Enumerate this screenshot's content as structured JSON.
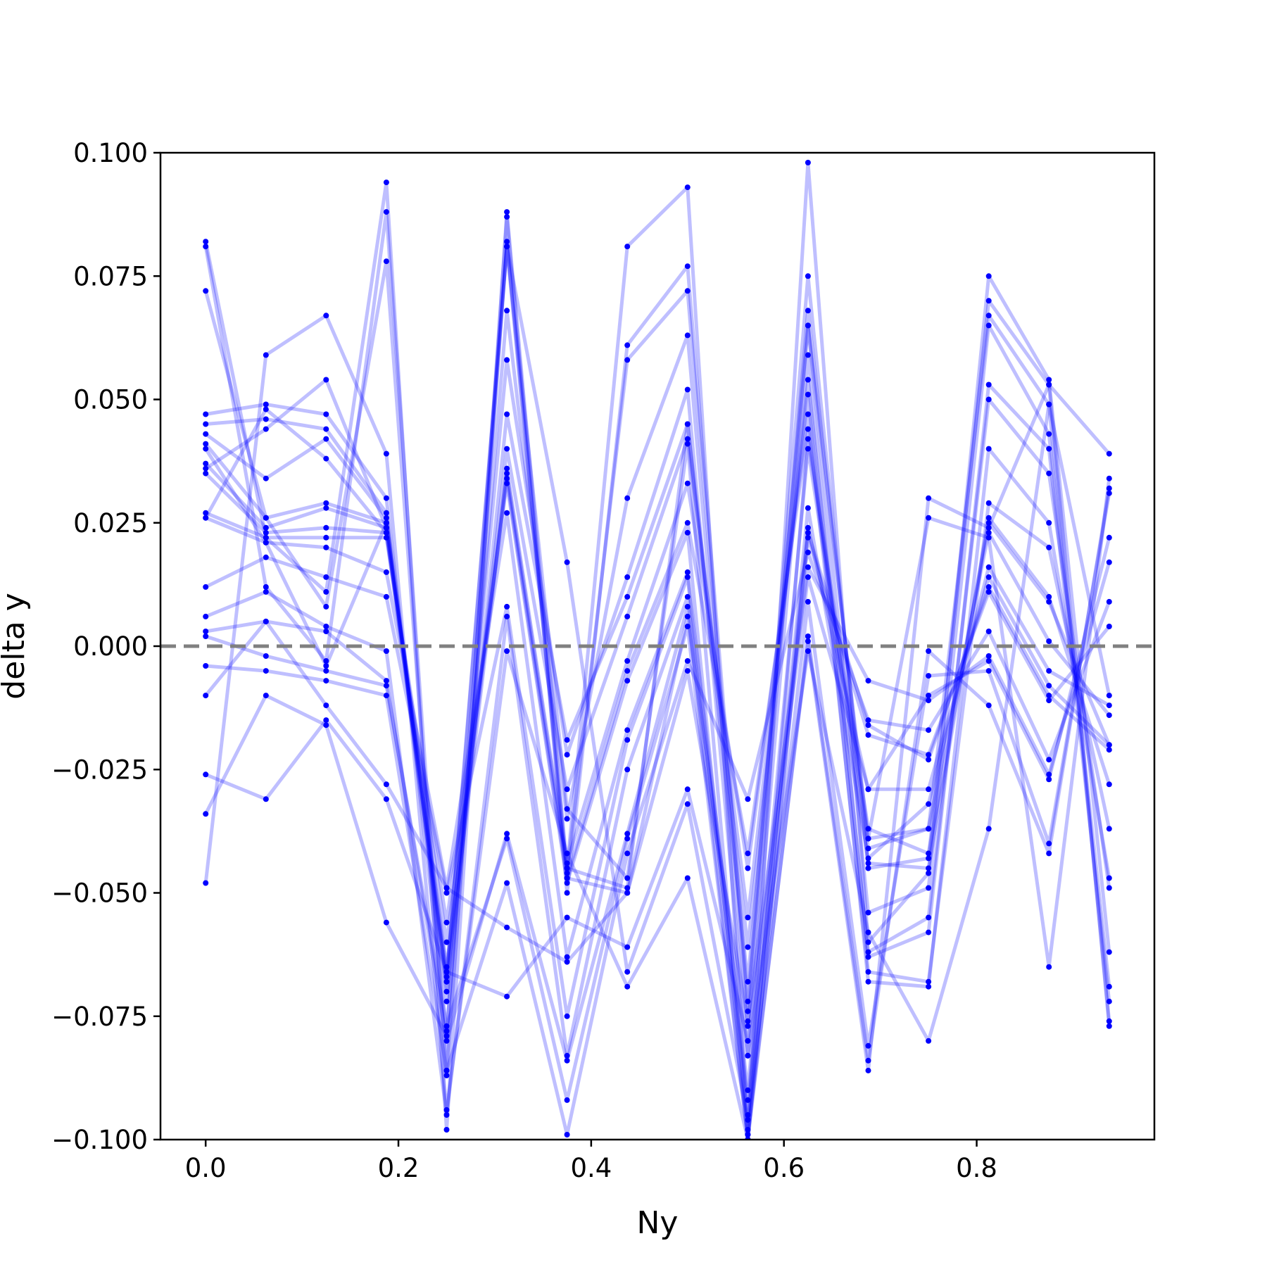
{
  "chart_data": {
    "type": "line",
    "title": "",
    "xlabel": "Ny",
    "ylabel": "delta y",
    "xlim": [
      -0.046875,
      0.984375
    ],
    "ylim": [
      -0.1,
      0.1
    ],
    "grid": false,
    "legend": "none",
    "reference_line": {
      "y": 0.0,
      "style": "dashed",
      "color": "#808080"
    },
    "colors": {
      "series": "#0000ff",
      "reference": "#808080",
      "axes": "#000000"
    },
    "xticks": [
      {
        "value": 0.0,
        "label": "0.0"
      },
      {
        "value": 0.2,
        "label": "0.2"
      },
      {
        "value": 0.4,
        "label": "0.4"
      },
      {
        "value": 0.6,
        "label": "0.6"
      },
      {
        "value": 0.8,
        "label": "0.8"
      }
    ],
    "yticks": [
      {
        "value": 0.1,
        "label": "0.100"
      },
      {
        "value": 0.075,
        "label": "0.075"
      },
      {
        "value": 0.05,
        "label": "0.050"
      },
      {
        "value": 0.025,
        "label": "0.025"
      },
      {
        "value": 0.0,
        "label": "0.000"
      },
      {
        "value": -0.025,
        "label": "−0.025"
      },
      {
        "value": -0.05,
        "label": "−0.050"
      },
      {
        "value": -0.075,
        "label": "−0.075"
      },
      {
        "value": -0.1,
        "label": "−0.100"
      }
    ],
    "x": [
      0.0,
      0.0625,
      0.125,
      0.1875,
      0.25,
      0.3125,
      0.375,
      0.4375,
      0.5,
      0.5625,
      0.625,
      0.6875,
      0.75,
      0.8125,
      0.875,
      0.9375
    ],
    "series": [
      {
        "values": [
          0.082,
          0.022,
          0.011,
          0.094,
          -0.098,
          0.088,
          -0.045,
          0.081,
          0.093,
          -0.098,
          0.098,
          -0.06,
          -0.046,
          0.075,
          0.054,
          -0.062
        ]
      },
      {
        "values": [
          0.081,
          0.012,
          -0.003,
          0.088,
          -0.086,
          0.087,
          -0.05,
          0.061,
          0.077,
          -0.072,
          0.075,
          -0.045,
          -0.043,
          0.07,
          0.053,
          -0.077
        ]
      },
      {
        "values": [
          0.072,
          0.026,
          0.008,
          0.078,
          -0.087,
          0.082,
          -0.046,
          0.058,
          0.072,
          -0.074,
          0.068,
          -0.041,
          -0.037,
          0.067,
          0.049,
          -0.076
        ]
      },
      {
        "values": [
          0.047,
          0.049,
          0.047,
          0.03,
          -0.078,
          0.068,
          -0.035,
          0.03,
          0.063,
          -0.077,
          0.065,
          -0.054,
          -0.049,
          0.065,
          0.043,
          -0.069
        ]
      },
      {
        "values": [
          0.045,
          0.046,
          0.044,
          0.027,
          -0.07,
          0.058,
          -0.022,
          0.014,
          0.052,
          -0.083,
          0.059,
          -0.063,
          -0.058,
          0.053,
          0.04,
          -0.072
        ]
      },
      {
        "values": [
          0.043,
          0.034,
          0.042,
          0.026,
          -0.072,
          0.047,
          -0.019,
          0.01,
          0.045,
          -0.061,
          0.054,
          -0.062,
          -0.055,
          0.05,
          0.035,
          -0.049
        ]
      },
      {
        "values": [
          0.041,
          0.026,
          0.029,
          0.025,
          -0.066,
          0.04,
          -0.029,
          0.006,
          0.042,
          -0.055,
          0.051,
          -0.068,
          -0.069,
          0.04,
          0.025,
          -0.047
        ]
      },
      {
        "values": [
          0.037,
          0.024,
          0.028,
          0.024,
          -0.065,
          0.036,
          -0.044,
          -0.003,
          0.033,
          -0.045,
          0.047,
          -0.066,
          -0.068,
          0.029,
          0.02,
          -0.037
        ]
      },
      {
        "values": [
          0.035,
          0.023,
          0.024,
          0.023,
          -0.06,
          0.034,
          -0.047,
          -0.005,
          0.025,
          -0.042,
          0.044,
          -0.044,
          -0.045,
          0.026,
          0.01,
          -0.028
        ]
      },
      {
        "values": [
          0.027,
          0.022,
          0.022,
          0.022,
          -0.056,
          0.033,
          -0.048,
          -0.007,
          0.023,
          -0.099,
          0.042,
          -0.037,
          -0.042,
          0.025,
          0.009,
          -0.02
        ]
      },
      {
        "values": [
          0.026,
          0.021,
          0.02,
          0.015,
          -0.049,
          0.027,
          -0.063,
          -0.017,
          0.015,
          -0.09,
          0.04,
          -0.039,
          -0.037,
          0.023,
          0.001,
          -0.014
        ]
      },
      {
        "values": [
          0.012,
          0.018,
          0.014,
          0.01,
          -0.05,
          0.008,
          -0.075,
          -0.019,
          0.014,
          -0.095,
          0.028,
          -0.043,
          -0.032,
          0.016,
          -0.005,
          -0.012
        ]
      },
      {
        "values": [
          0.006,
          0.011,
          0.004,
          -0.001,
          -0.095,
          0.006,
          -0.083,
          -0.025,
          0.01,
          -0.092,
          0.024,
          -0.029,
          -0.029,
          0.014,
          -0.008,
          -0.02
        ]
      },
      {
        "values": [
          0.003,
          0.005,
          0.003,
          -0.007,
          -0.08,
          -0.038,
          -0.084,
          -0.038,
          0.008,
          -0.1,
          0.023,
          -0.016,
          -0.023,
          0.012,
          -0.01,
          -0.021
        ]
      },
      {
        "values": [
          0.002,
          -0.002,
          -0.005,
          -0.008,
          -0.077,
          -0.039,
          -0.092,
          -0.039,
          0.004,
          -0.1,
          0.022,
          -0.018,
          -0.022,
          0.011,
          -0.011,
          0.004
        ]
      },
      {
        "values": [
          -0.004,
          -0.005,
          -0.007,
          -0.01,
          -0.086,
          -0.048,
          -0.099,
          -0.042,
          -0.003,
          -0.031,
          0.019,
          -0.015,
          -0.017,
          0.003,
          -0.023,
          0.009
        ]
      },
      {
        "values": [
          -0.01,
          0.005,
          -0.012,
          -0.028,
          -0.049,
          -0.057,
          -0.064,
          -0.05,
          -0.005,
          -0.076,
          0.016,
          -0.007,
          -0.011,
          -0.002,
          -0.026,
          0.017
        ]
      },
      {
        "values": [
          -0.026,
          -0.031,
          -0.015,
          -0.031,
          -0.066,
          -0.071,
          -0.055,
          -0.061,
          -0.029,
          -0.08,
          0.014,
          -0.029,
          -0.01,
          -0.003,
          -0.027,
          0.022
        ]
      },
      {
        "values": [
          -0.034,
          -0.01,
          -0.016,
          -0.056,
          -0.079,
          0.081,
          0.017,
          -0.066,
          -0.032,
          -0.096,
          0.009,
          -0.081,
          -0.006,
          -0.005,
          -0.04,
          0.031
        ]
      },
      {
        "values": [
          -0.048,
          0.059,
          0.067,
          0.039,
          -0.094,
          -0.001,
          -0.042,
          -0.069,
          -0.047,
          -0.1,
          0.002,
          -0.084,
          -0.001,
          -0.012,
          -0.042,
          0.032
        ]
      },
      {
        "values": [
          0.036,
          0.044,
          0.054,
          0.024,
          -0.068,
          0.035,
          -0.045,
          -0.049,
          0.045,
          -0.068,
          0.065,
          -0.039,
          0.026,
          0.022,
          -0.065,
          0.034
        ]
      },
      {
        "values": [
          0.026,
          0.048,
          0.038,
          0.023,
          -0.068,
          0.081,
          -0.033,
          -0.047,
          0.041,
          -0.099,
          0.001,
          -0.086,
          0.03,
          0.024,
          0.053,
          0.039
        ]
      },
      {
        "values": [
          0.04,
          0.021,
          -0.004,
          0.025,
          -0.067,
          0.081,
          -0.047,
          -0.05,
          0.006,
          -0.083,
          -0.001,
          -0.058,
          -0.08,
          -0.037,
          0.049,
          -0.01
        ]
      }
    ]
  }
}
